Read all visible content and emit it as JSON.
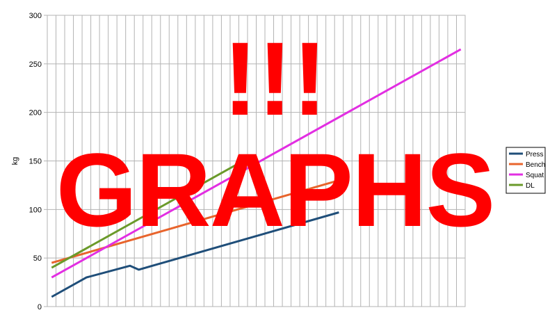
{
  "chart_data": {
    "type": "line",
    "title": "",
    "xlabel": "",
    "ylabel": "kg",
    "ylim": [
      0,
      300
    ],
    "yticks": [
      0,
      50,
      100,
      150,
      200,
      250,
      300
    ],
    "grid": "vertical and horizontal gridlines",
    "legend_position": "right",
    "series": [
      {
        "name": "Press",
        "color": "#1f4e79",
        "x": [
          1,
          5,
          10,
          11,
          34
        ],
        "y": [
          10,
          30,
          42,
          38,
          97
        ]
      },
      {
        "name": "Bench",
        "color": "#e8642c",
        "x": [
          1,
          34
        ],
        "y": [
          45,
          130
        ]
      },
      {
        "name": "Squat",
        "color": "#e22ee2",
        "x": [
          1,
          48
        ],
        "y": [
          30,
          265
        ]
      },
      {
        "name": "DL",
        "color": "#6a9a2a",
        "x": [
          1,
          24
        ],
        "y": [
          40,
          155
        ]
      }
    ],
    "x_categories": 48
  },
  "overlay": {
    "line1": "!!!",
    "line2": "GRAPHS",
    "color": "#ff0000"
  }
}
